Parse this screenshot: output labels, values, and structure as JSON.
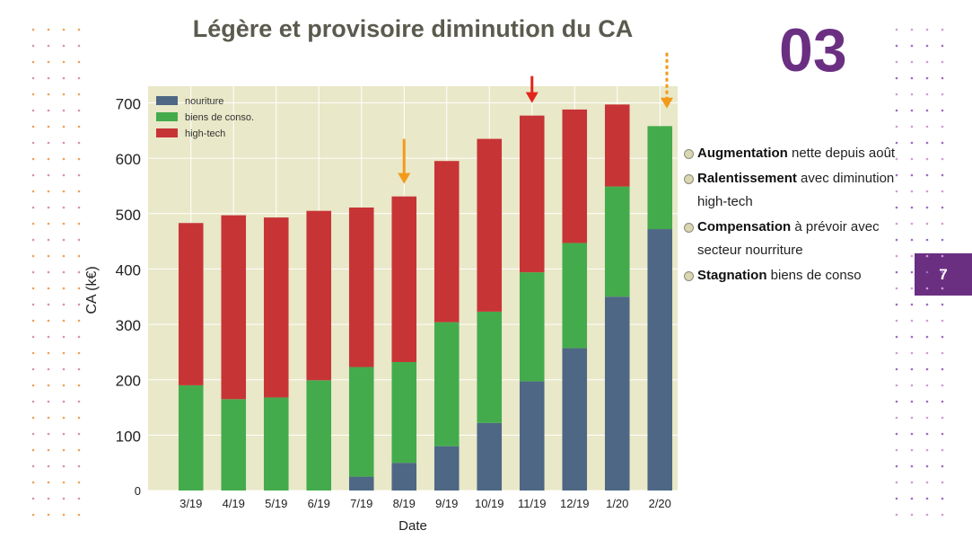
{
  "slide": {
    "title": "Légère et provisoire diminution du CA",
    "section_number": "03",
    "page_number": "7",
    "accent_color": "#6b2f82"
  },
  "bullets": [
    {
      "bold": "Augmentation",
      "rest": " nette depuis août"
    },
    {
      "bold": "Ralentissement",
      "rest": " avec diminution high-tech"
    },
    {
      "bold": "Compensation",
      "rest": " à prévoir avec secteur nourriture"
    },
    {
      "bold": "Stagnation",
      "rest": " biens de conso"
    }
  ],
  "chart_data": {
    "type": "bar",
    "stacked": true,
    "categories": [
      "3/19",
      "4/19",
      "5/19",
      "6/19",
      "7/19",
      "8/19",
      "9/19",
      "10/19",
      "11/19",
      "12/19",
      "1/20",
      "2/20"
    ],
    "series": [
      {
        "name": "nouriture",
        "color": "#4e6785",
        "values": [
          0,
          0,
          0,
          0,
          25,
          50,
          80,
          122,
          197,
          257,
          350,
          472
        ]
      },
      {
        "name": "biens de conso.",
        "color": "#44ab4c",
        "values": [
          190,
          165,
          168,
          199,
          198,
          182,
          224,
          201,
          197,
          190,
          199,
          186
        ]
      },
      {
        "name": "high-tech",
        "color": "#c73436",
        "values": [
          293,
          332,
          325,
          306,
          288,
          299,
          291,
          312,
          283,
          241,
          148,
          0
        ]
      }
    ],
    "xlabel": "Date",
    "ylabel": "CA (k€)",
    "ylim": [
      0,
      730
    ],
    "yticks": [
      0,
      100,
      200,
      300,
      400,
      500,
      600,
      700
    ],
    "grid": true,
    "legend_position": "top-left",
    "plot_background": "#e9e8c8",
    "markers": [
      {
        "category": "8/19",
        "color": "#f29a1b",
        "style": "solid"
      },
      {
        "category": "11/19",
        "color": "#e2261c",
        "style": "solid"
      },
      {
        "category": "2/20",
        "color": "#f29a1b",
        "style": "dashed"
      }
    ]
  }
}
